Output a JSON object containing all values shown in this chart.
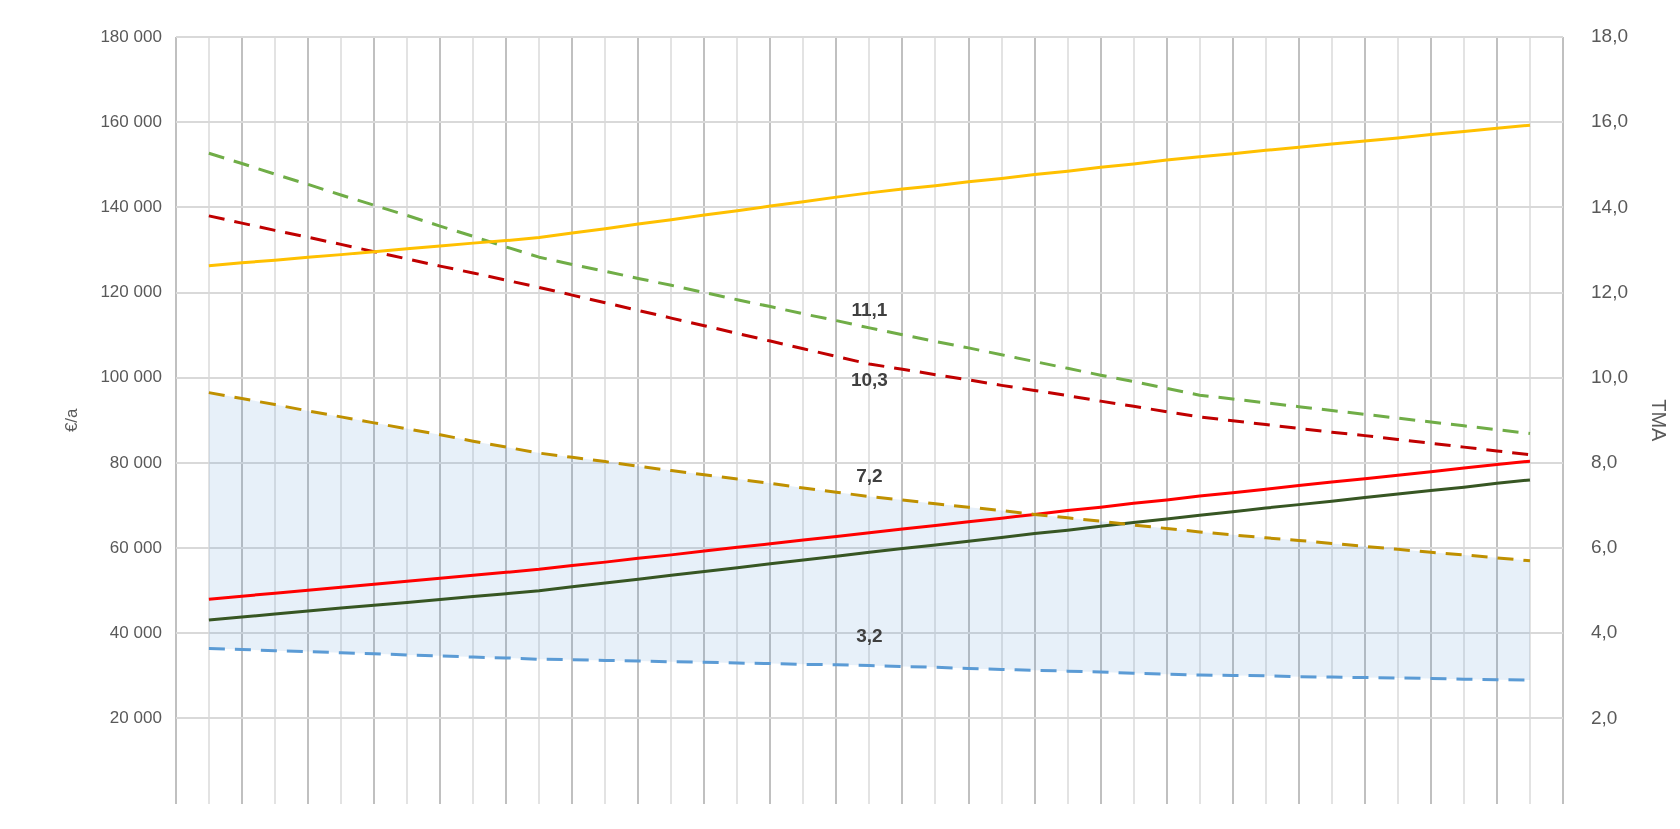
{
  "chart_data": {
    "type": "line",
    "ylabel": "€/a",
    "y2label": "TMA",
    "categories": [
      null,
      null,
      null,
      null,
      null,
      null,
      null,
      null,
      null,
      null,
      null,
      null,
      null,
      null,
      null,
      null,
      null,
      null,
      null,
      null,
      null,
      null,
      null,
      null,
      null,
      null,
      null,
      null,
      null,
      null,
      null,
      null,
      null,
      null,
      null,
      null,
      null,
      null,
      null,
      null,
      null
    ],
    "series": [
      {
        "color": "#ffc000",
        "line_style": "solid",
        "values": [
          126300,
          127000,
          127600,
          128300,
          128900,
          129600,
          130300,
          130900,
          131600,
          132200,
          132900,
          134000,
          135000,
          136100,
          137100,
          138200,
          139200,
          140300,
          141300,
          142400,
          143400,
          144300,
          145100,
          146000,
          146800,
          147700,
          148500,
          149400,
          150200,
          151100,
          151900,
          152600,
          153400,
          154100,
          154900,
          155600,
          156300,
          157100,
          157800,
          158600,
          159300
        ]
      },
      {
        "color": "#70ad47",
        "line_style": "dashed",
        "values": [
          152700,
          150300,
          147800,
          145400,
          142900,
          140500,
          138100,
          135600,
          133200,
          130700,
          128300,
          126600,
          125000,
          123300,
          121700,
          120000,
          118300,
          116700,
          115000,
          113400,
          111700,
          110100,
          108500,
          107000,
          105400,
          103800,
          102200,
          100600,
          99100,
          97500,
          95900,
          95000,
          94100,
          93200,
          92300,
          91400,
          90500,
          89600,
          88700,
          87800,
          86900
        ]
      },
      {
        "color": "#c00000",
        "line_style": "dashed",
        "values": [
          138000,
          136300,
          134600,
          133000,
          131300,
          129600,
          127900,
          126200,
          124600,
          122900,
          121200,
          119400,
          117600,
          115800,
          114000,
          112200,
          110400,
          108600,
          106800,
          105000,
          103200,
          102000,
          100700,
          99500,
          98200,
          97000,
          95800,
          94500,
          93300,
          92000,
          90800,
          89900,
          89000,
          88100,
          87200,
          86400,
          85500,
          84600,
          83700,
          82800,
          81900
        ]
      },
      {
        "color": "#bf9000",
        "line_style": "dashed",
        "values": [
          96500,
          95100,
          93700,
          92200,
          90800,
          89400,
          88000,
          86600,
          85100,
          83700,
          82300,
          81300,
          80300,
          79200,
          78200,
          77200,
          76200,
          75200,
          74100,
          73100,
          72100,
          71300,
          70400,
          69600,
          68800,
          67900,
          67100,
          66300,
          65400,
          64600,
          63800,
          63100,
          62400,
          61800,
          61100,
          60400,
          59700,
          59000,
          58400,
          57700,
          57000
        ]
      },
      {
        "color": "#5b9bd5",
        "line_style": "dashed",
        "values": [
          36400,
          36200,
          35900,
          35700,
          35400,
          35200,
          34900,
          34700,
          34400,
          34200,
          33900,
          33800,
          33600,
          33500,
          33300,
          33200,
          33000,
          32900,
          32700,
          32600,
          32400,
          32200,
          32000,
          31700,
          31500,
          31300,
          31100,
          30900,
          30600,
          30400,
          30200,
          30100,
          30000,
          29800,
          29700,
          29600,
          29500,
          29400,
          29200,
          29100,
          29000
        ],
        "lower": [
          36400,
          36200,
          35900,
          35700,
          35400,
          35200,
          34900,
          34700,
          34400,
          34200,
          33900,
          33800,
          33600,
          33500,
          33300,
          33200,
          33000,
          32900,
          32700,
          32600,
          32400,
          32200,
          32000,
          31700,
          31500,
          31300,
          31100,
          30900,
          30600,
          30400,
          30200,
          30100,
          30000,
          29800,
          29700,
          29600,
          29500,
          29400,
          29200,
          29100,
          29000
        ],
        "upper": [
          96500,
          95100,
          93700,
          92200,
          90800,
          89400,
          88000,
          86600,
          85100,
          83700,
          82300,
          81300,
          80300,
          79200,
          78200,
          77200,
          76200,
          75200,
          74100,
          73100,
          72100,
          71300,
          70400,
          69600,
          68800,
          67900,
          67100,
          66300,
          65400,
          64600,
          63800,
          63100,
          62400,
          61800,
          61100,
          60400,
          59700,
          59000,
          58400,
          57700,
          57000
        ]
      },
      {
        "color": "#ff0000",
        "line_style": "solid",
        "values": [
          48000,
          48700,
          49400,
          50100,
          50800,
          51500,
          52200,
          52900,
          53600,
          54300,
          55000,
          55900,
          56700,
          57600,
          58400,
          59300,
          60200,
          61000,
          61900,
          62700,
          63600,
          64500,
          65300,
          66200,
          67000,
          67900,
          68800,
          69600,
          70500,
          71300,
          72200,
          73000,
          73800,
          74700,
          75500,
          76300,
          77100,
          77900,
          78800,
          79600,
          80400
        ]
      },
      {
        "color": "#375623",
        "line_style": "solid",
        "values": [
          43100,
          43800,
          44500,
          45200,
          45900,
          46600,
          47200,
          47900,
          48600,
          49300,
          50000,
          50900,
          51800,
          52700,
          53600,
          54500,
          55400,
          56300,
          57200,
          58100,
          59000,
          59900,
          60700,
          61600,
          62500,
          63400,
          64200,
          65100,
          66000,
          66800,
          67700,
          68500,
          69400,
          70200,
          71000,
          71900,
          72700,
          73500,
          74300,
          75200,
          76000
        ]
      }
    ],
    "ylim": [
      0,
      180000
    ],
    "yticks": [
      {
        "value": 20000,
        "label": "20 000"
      },
      {
        "value": 40000,
        "label": "40 000"
      },
      {
        "value": 60000,
        "label": "60 000"
      },
      {
        "value": 80000,
        "label": "80 000"
      },
      {
        "value": 100000,
        "label": "100 000"
      },
      {
        "value": 120000,
        "label": "120 000"
      },
      {
        "value": 140000,
        "label": "140 000"
      },
      {
        "value": 160000,
        "label": "160 000"
      },
      {
        "value": 180000,
        "label": "180 000"
      }
    ],
    "y2lim": [
      0,
      18
    ],
    "y2ticks": [
      {
        "value": 2,
        "label": "2,0"
      },
      {
        "value": 4,
        "label": "4,0"
      },
      {
        "value": 6,
        "label": "6,0"
      },
      {
        "value": 8,
        "label": "8,0"
      },
      {
        "value": 10,
        "label": "10,0"
      },
      {
        "value": 12,
        "label": "12,0"
      },
      {
        "value": 14,
        "label": "14,0"
      },
      {
        "value": 16,
        "label": "16,0"
      },
      {
        "value": 18,
        "label": "18,0"
      }
    ],
    "annotations": [
      "11,1",
      "10,3",
      "7,2",
      "3,2"
    ],
    "grid": true,
    "legend": false,
    "marker": "none"
  }
}
